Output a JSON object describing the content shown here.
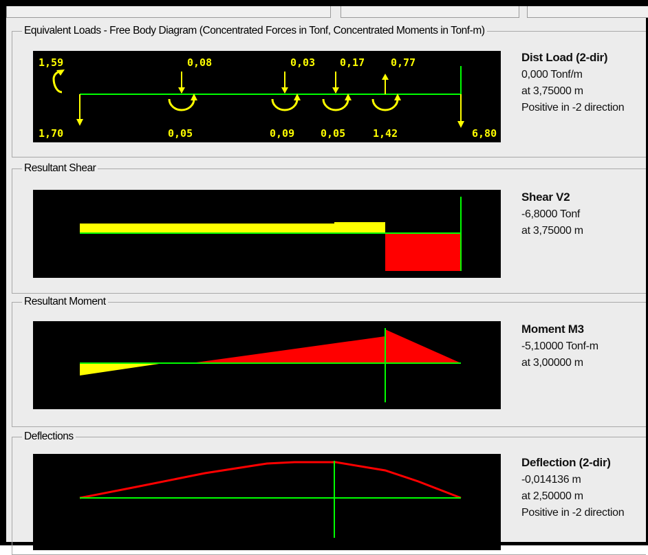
{
  "window": {
    "tabs": [
      "",
      "",
      ""
    ]
  },
  "groups": {
    "fbd": {
      "title": "Equivalent Loads - Free Body Diagram  (Concentrated Forces in Tonf, Concentrated Moments in Tonf-m)",
      "labels": {
        "left_moment": "1,59",
        "left_reaction": "1,70",
        "p1": "0,08",
        "p2": "0,03",
        "p3": "0,17",
        "p4": "0,77",
        "m1": "0,05",
        "m2": "0,09",
        "m3": "0,05",
        "m4": "1,42",
        "right_reaction": "6,80"
      },
      "info": {
        "title": "Dist Load (2-dir)",
        "line1": "0,000 Tonf/m",
        "line2": "at 3,75000 m",
        "line3": "Positive in -2 direction"
      }
    },
    "shear": {
      "title": "Resultant Shear",
      "info": {
        "title": "Shear V2",
        "line1": "-6,8000 Tonf",
        "line2": "at 3,75000 m"
      }
    },
    "moment": {
      "title": "Resultant Moment",
      "info": {
        "title": "Moment M3",
        "line1": "-5,10000 Tonf-m",
        "line2": "at 3,00000 m"
      }
    },
    "deflection": {
      "title": "Deflections",
      "info": {
        "title": "Deflection (2-dir)",
        "line1": "-0,014136 m",
        "line2": "at 2,50000 m",
        "line3": "Positive in -2 direction"
      }
    }
  },
  "colors": {
    "axis": "#00ff00",
    "positive": "#ffff00",
    "negative": "#ff0000",
    "plot_bg": "#000000",
    "panel_bg": "#ececec"
  }
}
